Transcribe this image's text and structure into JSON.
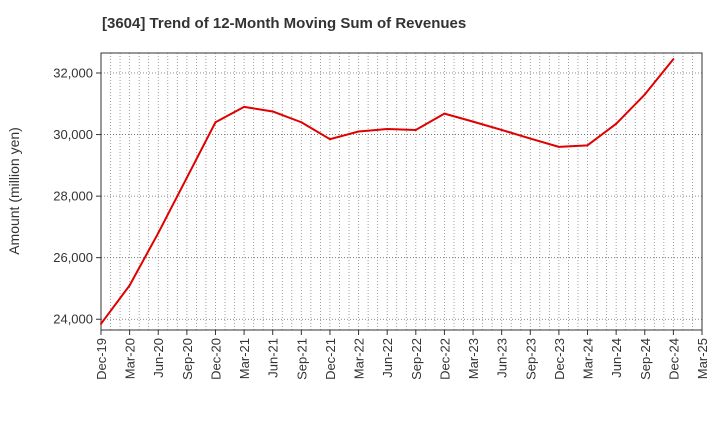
{
  "chart_data": {
    "type": "line",
    "title": "[3604]  Trend of 12-Month Moving Sum of Revenues",
    "xlabel": "",
    "ylabel": "Amount (million yen)",
    "ylim": [
      23650,
      32650
    ],
    "yticks": [
      24000,
      26000,
      28000,
      30000,
      32000
    ],
    "ytick_labels": [
      "24,000",
      "26,000",
      "28,000",
      "30,000",
      "32,000"
    ],
    "xtick_labels": [
      "Dec-19",
      "Mar-20",
      "Jun-20",
      "Sep-20",
      "Dec-20",
      "Mar-21",
      "Jun-21",
      "Sep-21",
      "Dec-21",
      "Mar-22",
      "Jun-22",
      "Sep-22",
      "Dec-22",
      "Mar-23",
      "Jun-23",
      "Sep-23",
      "Dec-23",
      "Mar-24",
      "Jun-24",
      "Sep-24",
      "Dec-24",
      "Mar-25"
    ],
    "grid": true,
    "series": [
      {
        "color": "#e00000",
        "x": [
          "Dec-19",
          "Mar-20",
          "Jun-20",
          "Sep-20",
          "Dec-20",
          "Mar-21",
          "Jun-21",
          "Sep-21",
          "Dec-21",
          "Mar-22",
          "Jun-22",
          "Sep-22",
          "Dec-22",
          "Mar-23",
          "Jun-23",
          "Sep-23",
          "Dec-23",
          "Mar-24",
          "Jun-24",
          "Sep-24",
          "Dec-24"
        ],
        "values": [
          23850,
          25100,
          26800,
          28600,
          30400,
          30900,
          30750,
          30400,
          29850,
          30100,
          30180,
          30150,
          30680,
          30420,
          30150,
          29870,
          29600,
          29650,
          30350,
          31300,
          32450
        ]
      }
    ]
  }
}
